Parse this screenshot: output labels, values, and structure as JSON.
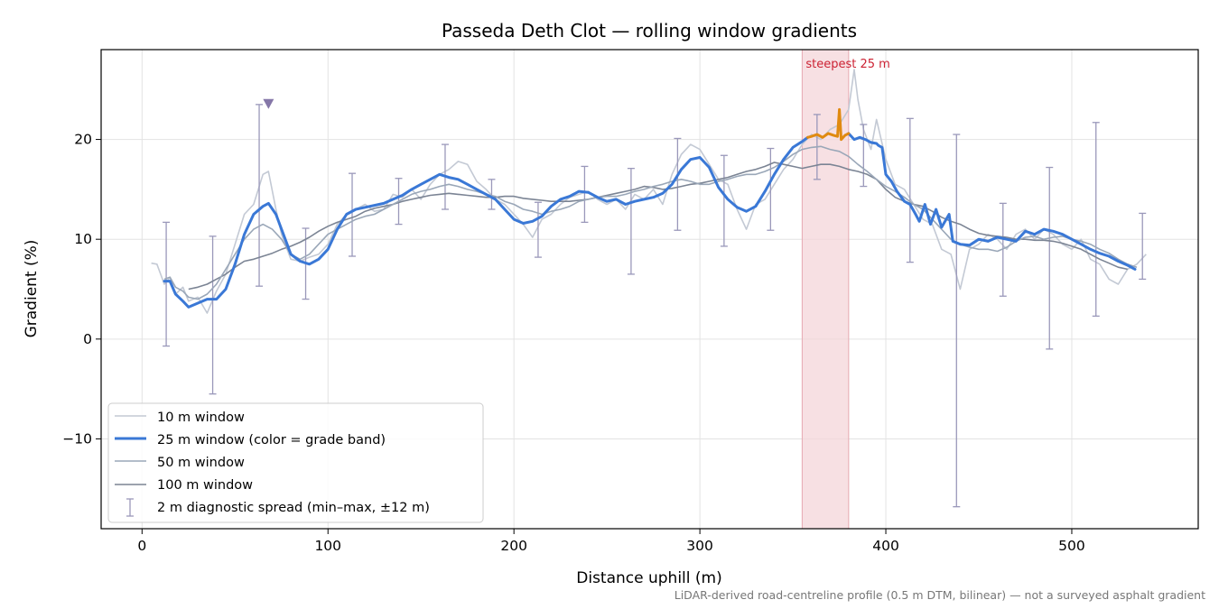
{
  "colors": {
    "w10": "#c3c9d4",
    "w25": "#3a78d6",
    "w25_steep": "#e08a10",
    "w50": "#9aa7b8",
    "w100": "#7b8494",
    "spread": "#9a98ba",
    "marker": "#8577a8",
    "band_fill": "#f4d6da",
    "band_edge": "#e6a9b2",
    "annotation": "#cc2233",
    "grid": "#e3e3e3"
  },
  "chart_data": {
    "type": "line",
    "title": "Passeda Deth Clot — rolling window gradients",
    "xlabel": "Distance uphill (m)",
    "ylabel": "Gradient (%)",
    "xlim": [
      -22,
      568
    ],
    "ylim": [
      -19,
      29
    ],
    "x_ticks": [
      0,
      100,
      200,
      300,
      400,
      500
    ],
    "y_ticks": [
      -10,
      0,
      10,
      20
    ],
    "y_tick_labels": [
      "−10",
      "0",
      "10",
      "20"
    ],
    "grid": true,
    "legend_position": "lower-left",
    "highlight_band": {
      "x_start": 355,
      "x_end": 380,
      "label": "steepest 25 m"
    },
    "peak_marker": {
      "x": 68,
      "y": 23.6
    },
    "series": [
      {
        "name": "10 m window",
        "x": [
          5,
          8,
          12,
          15,
          18,
          22,
          25,
          30,
          35,
          40,
          45,
          50,
          55,
          60,
          65,
          68,
          72,
          75,
          80,
          85,
          90,
          95,
          100,
          105,
          110,
          115,
          120,
          125,
          130,
          135,
          140,
          145,
          150,
          155,
          160,
          165,
          170,
          175,
          180,
          185,
          190,
          195,
          200,
          205,
          210,
          215,
          220,
          225,
          230,
          235,
          240,
          245,
          250,
          255,
          260,
          265,
          270,
          275,
          280,
          285,
          290,
          295,
          300,
          305,
          310,
          315,
          320,
          325,
          330,
          335,
          340,
          345,
          350,
          355,
          360,
          365,
          370,
          375,
          380,
          383,
          385,
          388,
          392,
          395,
          400,
          405,
          410,
          415,
          420,
          425,
          430,
          435,
          440,
          445,
          450,
          455,
          460,
          465,
          470,
          475,
          480,
          485,
          490,
          495,
          500,
          505,
          510,
          515,
          520,
          525,
          530,
          535,
          540
        ],
        "values": [
          7.6,
          7.5,
          5.5,
          6.2,
          4.5,
          5.2,
          3.8,
          4.2,
          2.6,
          4.8,
          6.5,
          9.5,
          12.5,
          13.5,
          16.5,
          16.8,
          13.0,
          10.5,
          8.0,
          7.8,
          8.2,
          8.5,
          9.5,
          11.5,
          12.5,
          13.0,
          13.5,
          12.8,
          13.0,
          14.5,
          14.2,
          15.0,
          14.0,
          15.5,
          16.5,
          17.0,
          17.8,
          17.5,
          15.8,
          15.0,
          14.0,
          13.5,
          12.5,
          11.5,
          10.2,
          12.0,
          12.5,
          13.5,
          14.2,
          14.5,
          14.8,
          14.0,
          13.5,
          14.0,
          13.0,
          14.5,
          14.0,
          15.0,
          13.5,
          16.5,
          18.5,
          19.5,
          19.0,
          17.5,
          16.0,
          15.5,
          13.0,
          11.0,
          13.5,
          14.0,
          15.5,
          17.0,
          18.0,
          19.5,
          20.5,
          20.0,
          21.0,
          21.5,
          23.0,
          27.0,
          24.0,
          21.0,
          19.0,
          22.0,
          18.0,
          15.5,
          15.0,
          13.5,
          12.0,
          11.5,
          9.0,
          8.5,
          5.0,
          9.0,
          9.5,
          10.5,
          10.0,
          9.0,
          10.5,
          11.0,
          10.0,
          11.0,
          10.5,
          9.5,
          9.0,
          10.0,
          8.0,
          7.5,
          6.0,
          5.5,
          7.0,
          7.5,
          8.5
        ]
      },
      {
        "name": "25 m window (color = grade band)",
        "x": [
          12,
          15,
          18,
          22,
          25,
          30,
          35,
          40,
          45,
          50,
          55,
          60,
          65,
          68,
          72,
          75,
          80,
          85,
          90,
          95,
          100,
          105,
          110,
          115,
          120,
          125,
          130,
          135,
          140,
          145,
          150,
          155,
          160,
          165,
          170,
          175,
          180,
          185,
          190,
          195,
          200,
          205,
          210,
          215,
          220,
          225,
          230,
          235,
          240,
          245,
          250,
          255,
          260,
          265,
          270,
          275,
          280,
          285,
          290,
          295,
          300,
          305,
          310,
          315,
          320,
          325,
          330,
          335,
          340,
          345,
          350,
          355,
          358
        ],
        "values": [
          5.8,
          5.8,
          4.5,
          3.8,
          3.2,
          3.6,
          4.0,
          4.0,
          5.0,
          7.5,
          10.5,
          12.5,
          13.3,
          13.6,
          12.5,
          11.0,
          8.5,
          7.8,
          7.5,
          8.0,
          9.0,
          11.0,
          12.5,
          13.0,
          13.2,
          13.4,
          13.6,
          14.0,
          14.4,
          15.0,
          15.5,
          16.0,
          16.5,
          16.2,
          16.0,
          15.5,
          15.0,
          14.5,
          14.0,
          13.0,
          12.0,
          11.6,
          11.8,
          12.3,
          13.3,
          14.0,
          14.3,
          14.8,
          14.7,
          14.2,
          13.8,
          14.0,
          13.5,
          13.8,
          14.0,
          14.2,
          14.6,
          15.5,
          17.0,
          18.0,
          18.2,
          17.2,
          15.2,
          14.0,
          13.2,
          12.8,
          13.3,
          14.8,
          16.5,
          18.0,
          19.2,
          19.8,
          20.2
        ],
        "continuation": {
          "x": [
            380,
            383,
            386,
            389,
            392,
            395,
            396,
            398,
            400,
            403,
            406,
            410,
            413,
            416,
            418,
            421,
            424,
            427,
            430,
            434,
            436,
            440,
            445,
            450,
            455,
            460,
            465,
            470,
            475,
            480,
            485,
            490,
            495,
            500,
            505,
            510,
            515,
            520,
            525,
            530,
            534
          ],
          "values": [
            20.6,
            20.0,
            20.2,
            20.0,
            19.7,
            19.6,
            19.4,
            19.2,
            16.5,
            15.8,
            14.8,
            13.8,
            13.5,
            12.5,
            11.8,
            13.5,
            11.5,
            13.0,
            11.2,
            12.5,
            9.8,
            9.5,
            9.4,
            10.0,
            9.8,
            10.2,
            10.0,
            9.8,
            10.8,
            10.5,
            11.0,
            10.8,
            10.5,
            10.0,
            9.5,
            9.0,
            8.6,
            8.3,
            7.8,
            7.4,
            7.0
          ]
        },
        "steepest_segment": {
          "x": [
            358,
            360,
            363,
            366,
            369,
            372,
            374,
            375,
            376,
            378,
            380
          ],
          "values": [
            20.2,
            20.3,
            20.5,
            20.2,
            20.6,
            20.4,
            20.3,
            23.0,
            20.0,
            20.4,
            20.6
          ]
        }
      },
      {
        "name": "50 m window",
        "x": [
          12,
          15,
          18,
          22,
          25,
          30,
          35,
          40,
          45,
          50,
          55,
          60,
          65,
          70,
          75,
          80,
          85,
          90,
          95,
          100,
          105,
          110,
          115,
          120,
          125,
          130,
          135,
          140,
          145,
          150,
          155,
          160,
          165,
          170,
          175,
          180,
          185,
          190,
          195,
          200,
          205,
          210,
          215,
          220,
          225,
          230,
          235,
          240,
          245,
          250,
          255,
          260,
          265,
          270,
          275,
          280,
          285,
          290,
          295,
          300,
          305,
          310,
          315,
          320,
          325,
          330,
          335,
          340,
          345,
          350,
          355,
          360,
          365,
          370,
          375,
          380,
          385,
          390,
          395,
          400,
          405,
          410,
          415,
          420,
          425,
          430,
          435,
          440,
          445,
          450,
          455,
          460,
          465,
          470,
          475,
          480,
          485,
          490,
          495,
          500,
          505,
          510,
          515,
          520,
          525,
          530,
          535
        ],
        "values": [
          6.0,
          6.2,
          5.2,
          4.8,
          4.2,
          4.0,
          4.5,
          5.5,
          7.0,
          8.5,
          10.0,
          11.0,
          11.5,
          11.0,
          10.0,
          8.5,
          8.0,
          8.5,
          9.5,
          10.5,
          11.0,
          11.5,
          12.0,
          12.3,
          12.5,
          13.0,
          13.5,
          14.0,
          14.5,
          14.8,
          15.0,
          15.3,
          15.5,
          15.3,
          15.0,
          14.8,
          14.5,
          14.3,
          13.8,
          13.5,
          13.0,
          12.8,
          12.5,
          12.8,
          13.0,
          13.3,
          13.8,
          14.0,
          14.2,
          14.3,
          14.3,
          14.5,
          14.8,
          15.0,
          15.3,
          15.5,
          15.8,
          16.0,
          15.8,
          15.5,
          15.5,
          15.8,
          16.0,
          16.3,
          16.5,
          16.5,
          16.8,
          17.2,
          17.8,
          18.5,
          19.0,
          19.2,
          19.3,
          19.0,
          18.8,
          18.3,
          17.5,
          16.8,
          16.0,
          15.3,
          14.8,
          14.2,
          13.5,
          13.0,
          12.0,
          11.0,
          10.0,
          9.5,
          9.2,
          9.0,
          9.0,
          8.8,
          9.2,
          9.8,
          10.2,
          10.3,
          10.0,
          10.2,
          10.3,
          10.0,
          9.8,
          9.5,
          9.0,
          8.6,
          8.0,
          7.5,
          7.2
        ]
      },
      {
        "name": "100 m window",
        "x": [
          25,
          30,
          35,
          40,
          45,
          50,
          55,
          60,
          65,
          70,
          75,
          80,
          85,
          90,
          95,
          100,
          105,
          110,
          115,
          120,
          125,
          130,
          135,
          140,
          145,
          150,
          155,
          160,
          165,
          170,
          175,
          180,
          185,
          190,
          195,
          200,
          205,
          210,
          215,
          220,
          225,
          230,
          235,
          240,
          245,
          250,
          255,
          260,
          265,
          270,
          275,
          280,
          285,
          290,
          295,
          300,
          305,
          310,
          315,
          320,
          325,
          330,
          335,
          340,
          345,
          350,
          355,
          360,
          365,
          370,
          375,
          380,
          385,
          390,
          395,
          400,
          405,
          410,
          415,
          420,
          425,
          430,
          435,
          440,
          445,
          450,
          455,
          460,
          465,
          470,
          475,
          480,
          485,
          490,
          495,
          500,
          505,
          510,
          515,
          520,
          525,
          530
        ],
        "values": [
          5.0,
          5.2,
          5.5,
          6.0,
          6.5,
          7.2,
          7.8,
          8.0,
          8.3,
          8.6,
          9.0,
          9.3,
          9.7,
          10.2,
          10.8,
          11.3,
          11.7,
          12.0,
          12.3,
          12.8,
          13.1,
          13.3,
          13.5,
          13.8,
          14.0,
          14.2,
          14.4,
          14.5,
          14.6,
          14.5,
          14.4,
          14.3,
          14.2,
          14.2,
          14.3,
          14.3,
          14.1,
          14.0,
          13.9,
          13.8,
          13.8,
          13.8,
          13.9,
          14.0,
          14.2,
          14.4,
          14.6,
          14.8,
          15.0,
          15.3,
          15.2,
          15.0,
          15.1,
          15.3,
          15.5,
          15.6,
          15.8,
          16.0,
          16.2,
          16.5,
          16.8,
          17.0,
          17.3,
          17.7,
          17.5,
          17.3,
          17.1,
          17.3,
          17.5,
          17.5,
          17.3,
          17.0,
          16.8,
          16.5,
          16.0,
          15.0,
          14.2,
          13.8,
          13.5,
          13.3,
          12.8,
          12.2,
          11.8,
          11.5,
          11.0,
          10.6,
          10.4,
          10.3,
          10.2,
          10.0,
          10.0,
          9.9,
          9.9,
          9.8,
          9.6,
          9.3,
          9.0,
          8.5,
          8.0,
          7.6,
          7.2,
          7.0
        ]
      },
      {
        "name": "2 m diagnostic spread (min–max, ±12 m)",
        "x": [
          13,
          38,
          63,
          88,
          113,
          138,
          163,
          188,
          213,
          238,
          263,
          288,
          313,
          338,
          363,
          388,
          413,
          438,
          463,
          488,
          513,
          538
        ],
        "y_center": [
          5.8,
          4.0,
          12.5,
          7.5,
          12.5,
          13.5,
          16.2,
          14.5,
          11.8,
          14.5,
          13.8,
          16.5,
          14.0,
          15.0,
          20.3,
          19.5,
          15.0,
          9.5,
          10.5,
          10.5,
          9.5,
          7.2
        ],
        "min": [
          -0.7,
          -5.5,
          5.3,
          4.0,
          8.3,
          11.5,
          13.0,
          13.0,
          8.2,
          11.7,
          6.5,
          10.9,
          9.3,
          10.9,
          16.0,
          15.3,
          7.7,
          -16.8,
          4.3,
          -1.0,
          2.3,
          6.0
        ],
        "max": [
          11.7,
          10.3,
          23.5,
          11.1,
          16.6,
          16.1,
          19.5,
          16.0,
          13.7,
          17.3,
          17.1,
          20.1,
          18.4,
          19.1,
          22.5,
          21.5,
          22.1,
          20.5,
          13.6,
          17.2,
          21.7,
          12.6
        ]
      }
    ]
  },
  "footnote": "LiDAR-derived road-centreline profile (0.5 m DTM, bilinear) — not a surveyed asphalt gradient"
}
